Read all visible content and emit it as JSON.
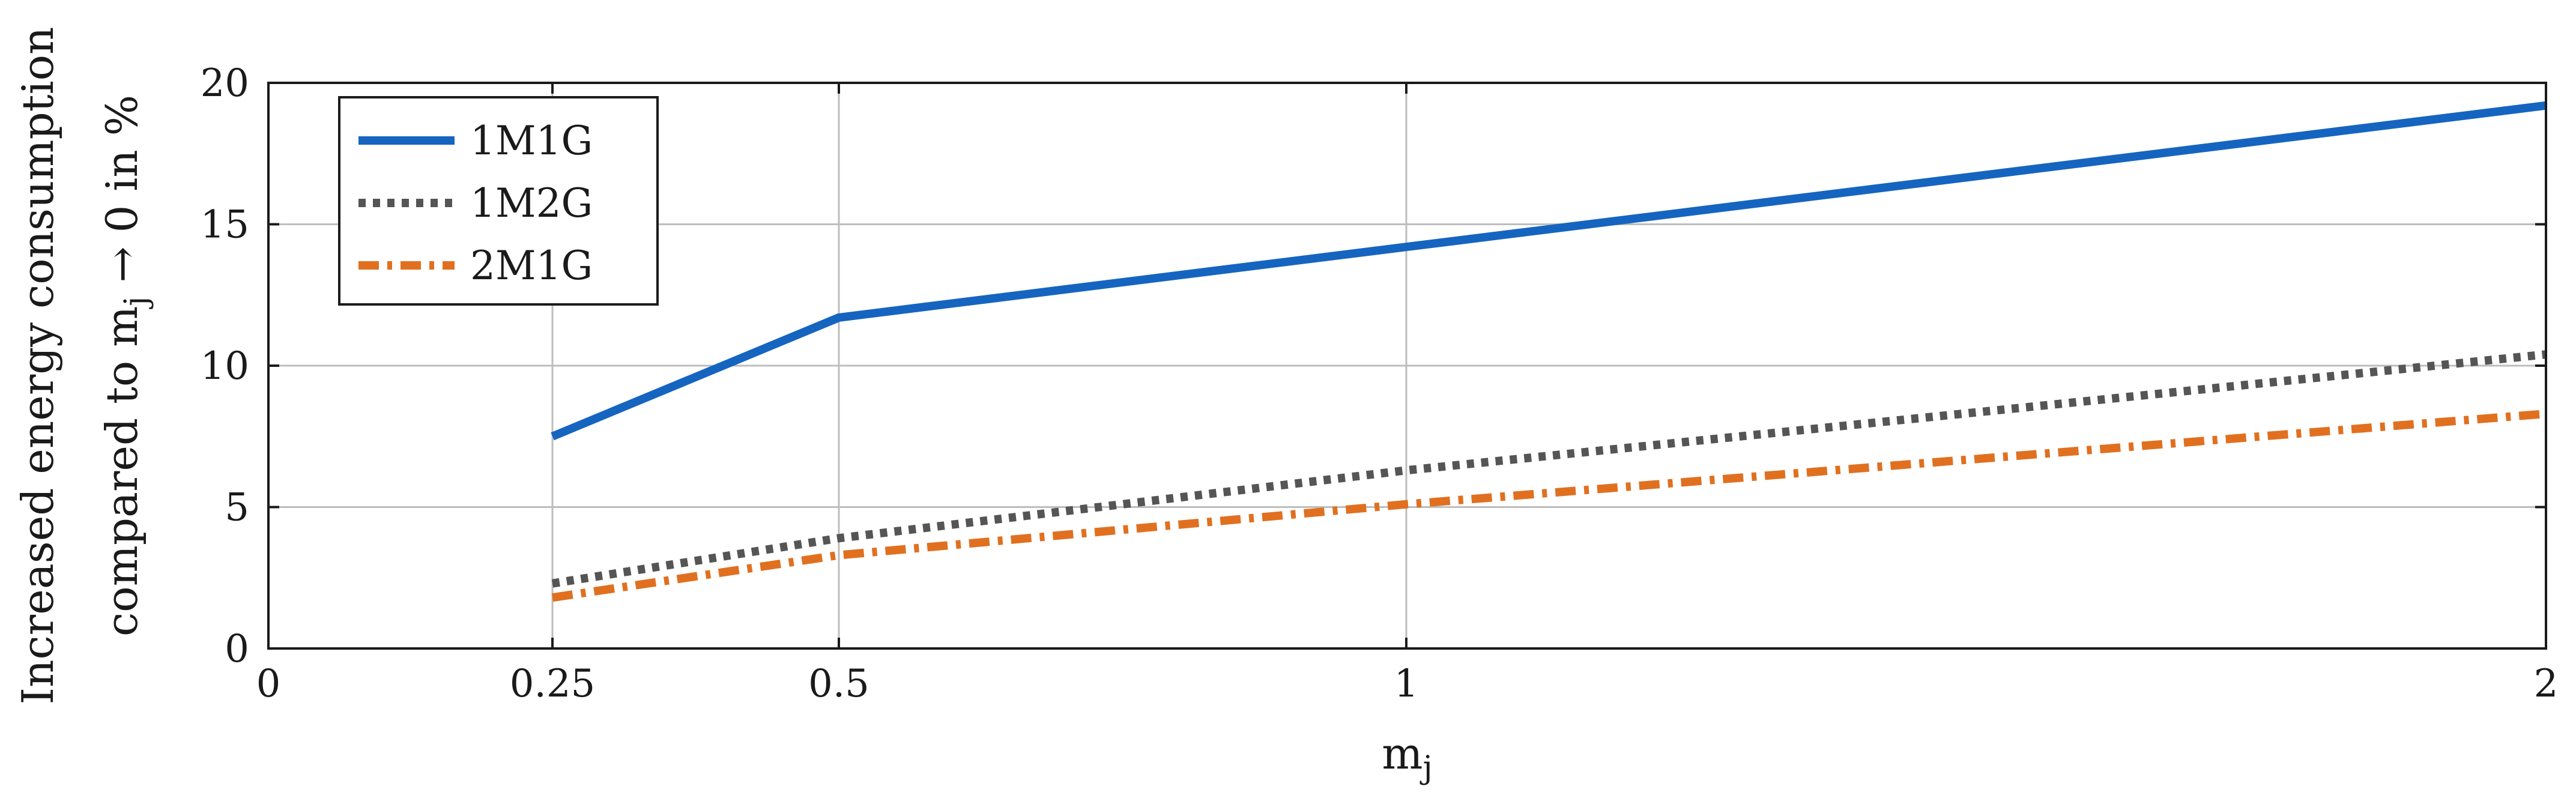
{
  "chart_data": {
    "type": "line",
    "title": "",
    "xlabel": "m",
    "xlabel_sub": "j",
    "ylabel_line1": "Increased energy consumption",
    "ylabel_line2_pre": "compared to m",
    "ylabel_line2_sub": "j",
    "ylabel_line2_post": " → 0 in %",
    "xlim": [
      0,
      2
    ],
    "ylim": [
      0,
      20
    ],
    "x_ticks": [
      0,
      0.25,
      0.5,
      1,
      2
    ],
    "x_tick_labels": [
      "0",
      "0.25",
      "0.5",
      "1",
      "2"
    ],
    "y_ticks": [
      0,
      5,
      10,
      15,
      20
    ],
    "y_tick_labels": [
      "0",
      "5",
      "10",
      "15",
      "20"
    ],
    "x_scale": "piecewise: 0, 0.25, 0.5, 1, 2 at tick positions",
    "grid": true,
    "legend_position": "top-left",
    "series": [
      {
        "name": "1M1G",
        "color": "#1565c0",
        "style": "solid",
        "x": [
          0.25,
          0.5,
          1,
          2
        ],
        "y": [
          7.5,
          11.7,
          14.2,
          19.2
        ]
      },
      {
        "name": "1M2G",
        "color": "#555555",
        "style": "dotted",
        "x": [
          0.25,
          0.5,
          1,
          2
        ],
        "y": [
          2.3,
          3.9,
          6.3,
          10.4
        ]
      },
      {
        "name": "2M1G",
        "color": "#e07020",
        "style": "dash-dot",
        "x": [
          0.25,
          0.5,
          1,
          2
        ],
        "y": [
          1.8,
          3.3,
          5.1,
          8.3
        ]
      }
    ]
  }
}
